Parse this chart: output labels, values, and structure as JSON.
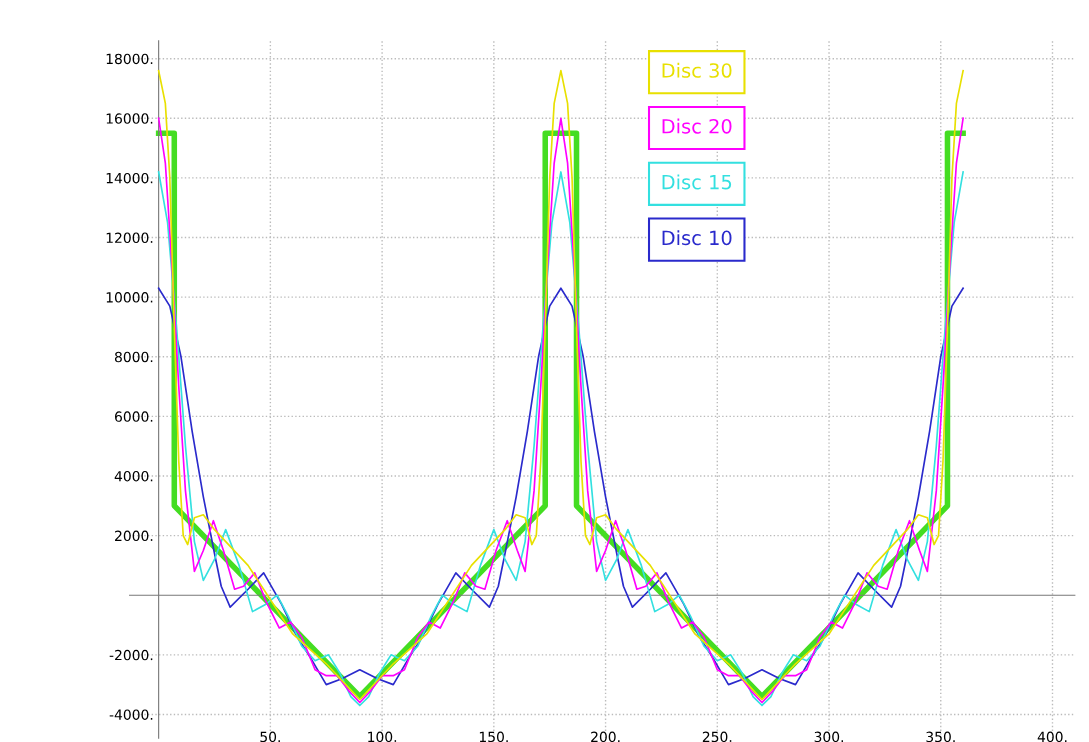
{
  "chart_data": {
    "type": "line",
    "xlim": [
      -13,
      410
    ],
    "ylim": [
      -4800,
      18600
    ],
    "xticks": [
      {
        "value": 50,
        "label": "50."
      },
      {
        "value": 100,
        "label": "100."
      },
      {
        "value": 150,
        "label": "150."
      },
      {
        "value": 200,
        "label": "200."
      },
      {
        "value": 250,
        "label": "250."
      },
      {
        "value": 300,
        "label": "300."
      },
      {
        "value": 350,
        "label": "350."
      },
      {
        "value": 400,
        "label": "400."
      }
    ],
    "yticks": [
      {
        "value": -4000,
        "label": "-4000."
      },
      {
        "value": -2000,
        "label": "-2000."
      },
      {
        "value": 2000,
        "label": "2000."
      },
      {
        "value": 4000,
        "label": "4000."
      },
      {
        "value": 6000,
        "label": "6000."
      },
      {
        "value": 8000,
        "label": "8000."
      },
      {
        "value": 10000,
        "label": "10000."
      },
      {
        "value": 12000,
        "label": "12000."
      },
      {
        "value": 14000,
        "label": "14000."
      },
      {
        "value": 16000,
        "label": "16000."
      },
      {
        "value": 18000,
        "label": "18000."
      }
    ],
    "grid": true,
    "legend": "top",
    "line_style": "solid",
    "series": [
      {
        "name": "Disc 30",
        "color": "#e8e000",
        "x": [
          0,
          3,
          5,
          7,
          9,
          11,
          13,
          16,
          20,
          25,
          40,
          60,
          75,
          90,
          105,
          120,
          140,
          155,
          160,
          164,
          167,
          169,
          171,
          173,
          175,
          177,
          180,
          183,
          185,
          187,
          189,
          191,
          193,
          196,
          200,
          205,
          220,
          240,
          255,
          270,
          285,
          300,
          320,
          335,
          340,
          344,
          347,
          349,
          351,
          353,
          355,
          357,
          360
        ],
        "values": [
          17600,
          16500,
          14000,
          9000,
          4500,
          2000,
          1700,
          2600,
          2700,
          2200,
          1000,
          -1300,
          -2300,
          -3500,
          -2300,
          -1300,
          1000,
          2200,
          2700,
          2600,
          1700,
          2000,
          4500,
          9000,
          14000,
          16500,
          17600,
          16500,
          14000,
          9000,
          4500,
          2000,
          1700,
          2600,
          2700,
          2200,
          1000,
          -1300,
          -2300,
          -3500,
          -2300,
          -1300,
          1000,
          2200,
          2700,
          2600,
          1700,
          2000,
          4500,
          9000,
          14000,
          16500,
          17600
        ]
      },
      {
        "name": "Disc 20",
        "color": "#ff00ff",
        "x": [
          0,
          3,
          6,
          9,
          12,
          16,
          20,
          24.5,
          29,
          34,
          38,
          43,
          48,
          54,
          59,
          64,
          70,
          75,
          80,
          85,
          90,
          95,
          100,
          105,
          110,
          116,
          121,
          126,
          132,
          137,
          142,
          146,
          151,
          156,
          160.5,
          164,
          168,
          171,
          174,
          177,
          180,
          183,
          186,
          189,
          192,
          196,
          200,
          204.5,
          209,
          214,
          218,
          223,
          228,
          234,
          239,
          244,
          250,
          255,
          260,
          265,
          270,
          275,
          280,
          285,
          290,
          296,
          301,
          306,
          312,
          317,
          322,
          326,
          331,
          336,
          340.5,
          344,
          348,
          351,
          354,
          357,
          360
        ],
        "values": [
          16000,
          14500,
          11000,
          7000,
          3500,
          800,
          1500,
          2500,
          1500,
          200,
          300,
          750,
          -200,
          -1100,
          -900,
          -1400,
          -2500,
          -2700,
          -2700,
          -3200,
          -3600,
          -3200,
          -2700,
          -2700,
          -2500,
          -1400,
          -900,
          -1100,
          -200,
          750,
          300,
          200,
          1500,
          2500,
          1500,
          800,
          3500,
          7000,
          11000,
          14500,
          16000,
          14500,
          11000,
          7000,
          3500,
          800,
          1500,
          2500,
          1500,
          200,
          300,
          750,
          -200,
          -1100,
          -900,
          -1400,
          -2500,
          -2700,
          -2700,
          -3200,
          -3600,
          -3200,
          -2700,
          -2700,
          -2500,
          -1400,
          -900,
          -1100,
          -200,
          750,
          300,
          200,
          1500,
          2500,
          1500,
          800,
          3500,
          7000,
          11000,
          14500,
          16000
        ]
      },
      {
        "name": "Disc 15",
        "color": "#33e0e0",
        "x": [
          0,
          4,
          8,
          12,
          16,
          20,
          25,
          30,
          36,
          42,
          48,
          53,
          58,
          64,
          70,
          76,
          81,
          86,
          90,
          94,
          99,
          104,
          110,
          116,
          122,
          127,
          132,
          138,
          144,
          150,
          155,
          160,
          164,
          168,
          172,
          176,
          180,
          184,
          188,
          192,
          196,
          200,
          205,
          210,
          216,
          222,
          228,
          233,
          238,
          244,
          250,
          256,
          261,
          266,
          270,
          274,
          279,
          284,
          290,
          296,
          302,
          307,
          312,
          318,
          324,
          330,
          335,
          340,
          344,
          348,
          352,
          356,
          360
        ],
        "values": [
          14200,
          12500,
          9000,
          5000,
          1800,
          500,
          1200,
          2200,
          1000,
          -550,
          -300,
          0,
          -700,
          -1700,
          -2200,
          -2000,
          -2600,
          -3400,
          -3700,
          -3400,
          -2600,
          -2000,
          -2200,
          -1700,
          -700,
          0,
          -300,
          -550,
          1000,
          2200,
          1200,
          500,
          1800,
          5000,
          9000,
          12500,
          14200,
          12500,
          9000,
          5000,
          1800,
          500,
          1200,
          2200,
          1000,
          -550,
          -300,
          0,
          -700,
          -1700,
          -2200,
          -2000,
          -2600,
          -3400,
          -3700,
          -3400,
          -2600,
          -2000,
          -2200,
          -1700,
          -700,
          0,
          -300,
          -550,
          1000,
          2200,
          1200,
          500,
          1800,
          5000,
          9000,
          12500,
          14200
        ]
      },
      {
        "name": "Disc 10",
        "color": "#2a2acc",
        "x": [
          0,
          5,
          10,
          15,
          20,
          25,
          28,
          32,
          40,
          47,
          55,
          62,
          68,
          75,
          82,
          90,
          98,
          105,
          112,
          118,
          125,
          133,
          140,
          148,
          152,
          155,
          160,
          165,
          170,
          175,
          180,
          185,
          190,
          195,
          200,
          205,
          208,
          212,
          220,
          227,
          235,
          242,
          248,
          255,
          262,
          270,
          278,
          285,
          292,
          298,
          305,
          313,
          320,
          328,
          332,
          335,
          340,
          345,
          350,
          355,
          360
        ],
        "values": [
          10300,
          9700,
          8000,
          5500,
          3300,
          1400,
          300,
          -400,
          200,
          750,
          -300,
          -1400,
          -2100,
          -3000,
          -2800,
          -2500,
          -2800,
          -3000,
          -2100,
          -1400,
          -300,
          750,
          200,
          -400,
          300,
          1400,
          3300,
          5500,
          8000,
          9700,
          10300,
          9700,
          8000,
          5500,
          3300,
          1400,
          300,
          -400,
          200,
          750,
          -300,
          -1400,
          -2100,
          -3000,
          -2800,
          -2500,
          -2800,
          -3000,
          -2100,
          -1400,
          -300,
          750,
          200,
          -400,
          300,
          1400,
          3300,
          5500,
          8000,
          9700,
          10300
        ]
      },
      {
        "color": "#44dd22",
        "x": [
          0,
          7,
          7,
          90,
          173,
          173,
          187,
          187,
          270,
          353,
          353,
          360
        ],
        "values": [
          15500,
          15500,
          3000,
          -3400,
          3000,
          15500,
          15500,
          3000,
          -3400,
          3000,
          15500,
          15500
        ]
      }
    ]
  }
}
